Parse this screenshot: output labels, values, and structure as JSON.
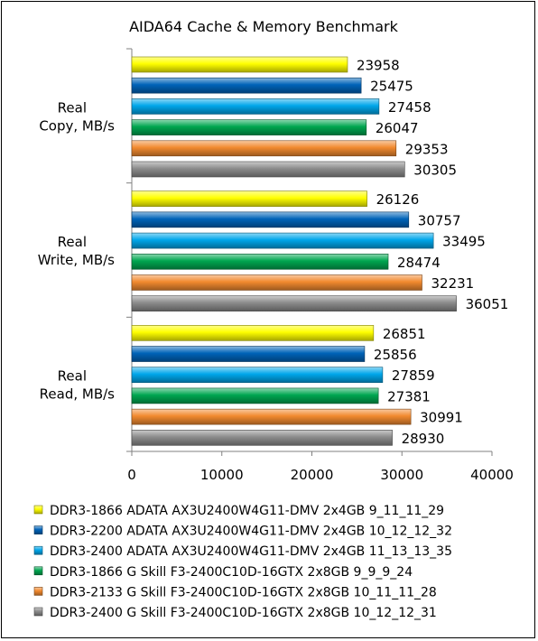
{
  "chart_data": {
    "type": "bar",
    "orientation": "horizontal",
    "title": "AIDA64 Cache & Memory Benchmark",
    "categories": [
      [
        "Real",
        "Copy, MB/s"
      ],
      [
        "Real",
        "Write, MB/s"
      ],
      [
        "Real",
        "Read, MB/s"
      ]
    ],
    "xlim": [
      0,
      40000
    ],
    "x_ticks": [
      "0",
      "10000",
      "20000",
      "30000",
      "40000"
    ],
    "grid": false,
    "legend_position": "bottom",
    "series": [
      {
        "name": "DDR3-1866 ADATA AX3U2400W4G11-DMV 2x4GB 9_11_11_29",
        "color": "#ffff00",
        "values": [
          23958,
          26126,
          26851
        ]
      },
      {
        "name": "DDR3-2200 ADATA AX3U2400W4G11-DMV 2x4GB 10_12_12_32",
        "color": "#0063b8",
        "values": [
          25475,
          30757,
          25856
        ]
      },
      {
        "name": "DDR3-2400 ADATA AX3U2400W4G11-DMV 2x4GB 11_13_13_35",
        "color": "#00a6ea",
        "values": [
          27458,
          33495,
          27859
        ]
      },
      {
        "name": "DDR3-1866 G Skill F3-2400C10D-16GTX 2x8GB 9_9_9_24",
        "color": "#00a650",
        "values": [
          26047,
          28474,
          27381
        ]
      },
      {
        "name": "DDR3-2133 G Skill F3-2400C10D-16GTX 2x8GB 10_11_11_28",
        "color": "#f28a2f",
        "values": [
          29353,
          32231,
          30991
        ]
      },
      {
        "name": "DDR3-2400 G Skill F3-2400C10D-16GTX 2x8GB 10_12_12_31",
        "color": "#8c8c8c",
        "values": [
          30305,
          36051,
          28930
        ]
      }
    ]
  }
}
